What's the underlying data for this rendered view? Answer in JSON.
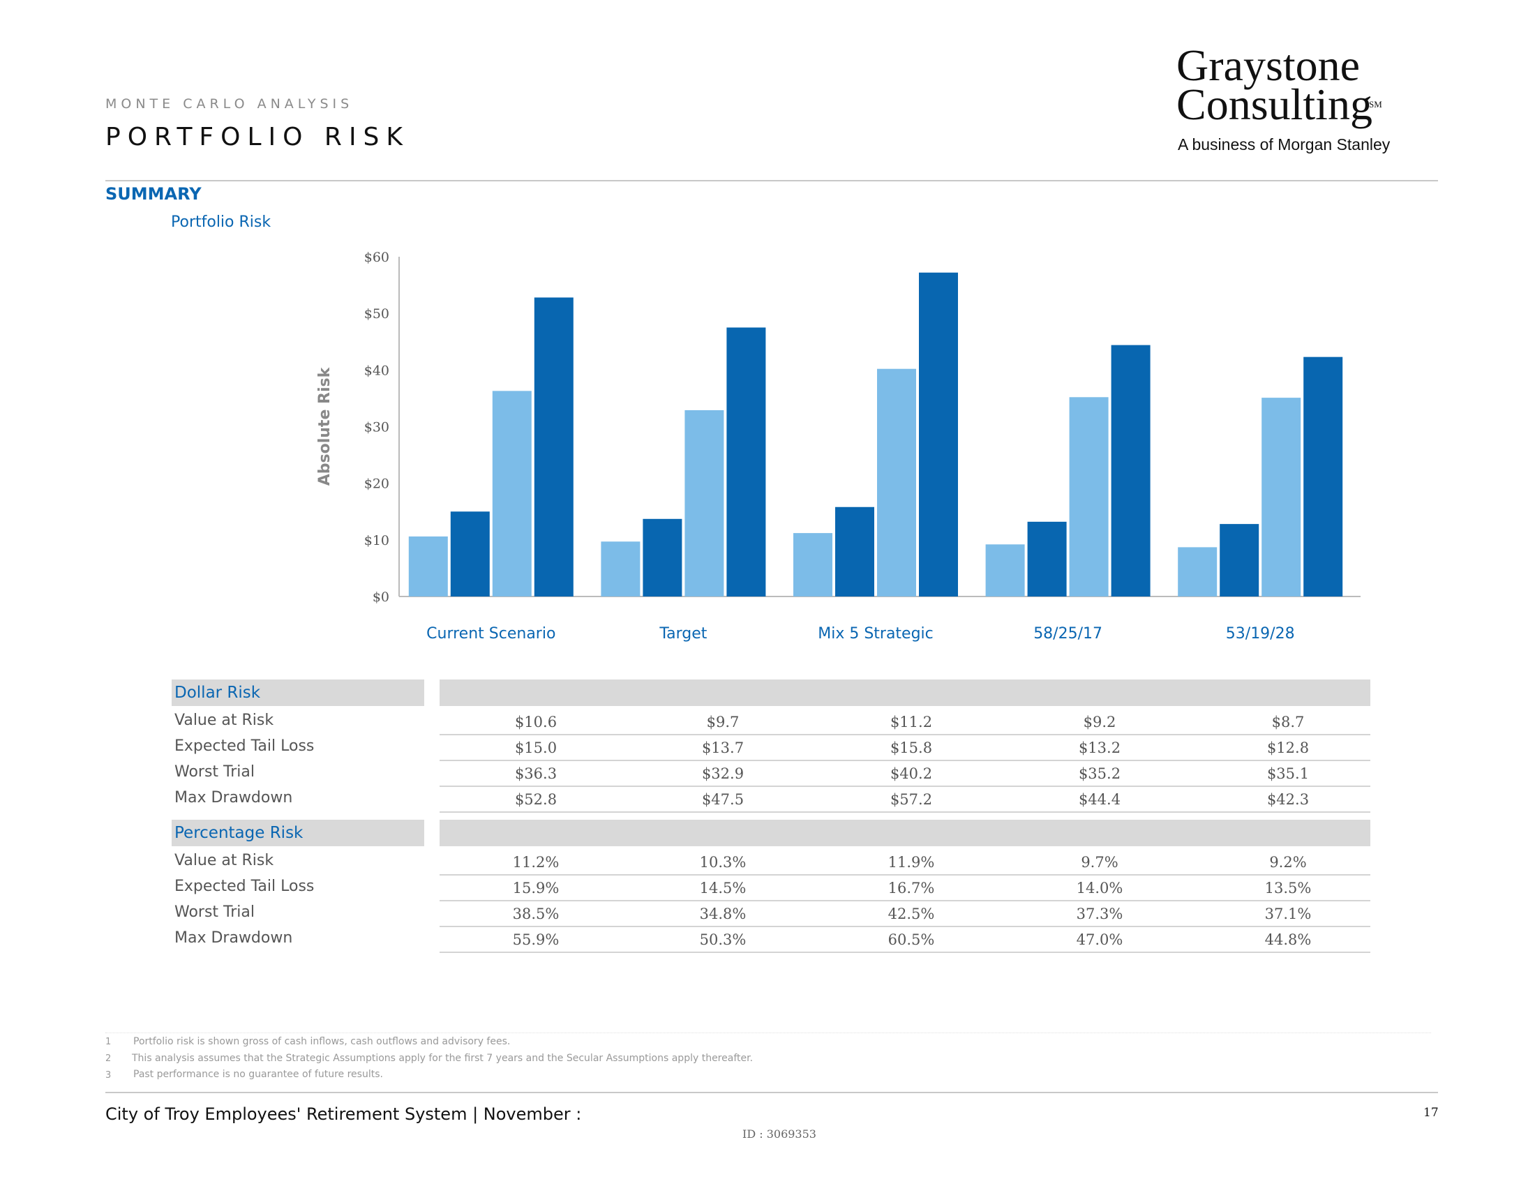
{
  "header": {
    "eyebrow": "MONTE CARLO ANALYSIS",
    "title": "PORTFOLIO RISK",
    "logo_line1": "Graystone",
    "logo_line2": "Consulting",
    "logo_mark": "SM",
    "logo_tagline": "A business of Morgan Stanley"
  },
  "section": {
    "summary": "SUMMARY",
    "subheading": "Portfolio Risk"
  },
  "chart_data": {
    "type": "bar",
    "ylabel": "Absolute Risk",
    "ylim": [
      0,
      60
    ],
    "yticks": [
      "$0",
      "$10",
      "$20",
      "$30",
      "$40",
      "$50",
      "$60"
    ],
    "ytick_values": [
      0,
      10,
      20,
      30,
      40,
      50,
      60
    ],
    "categories": [
      "Current Scenario",
      "Target",
      "Mix 5 Strategic",
      "58/25/17",
      "53/19/28"
    ],
    "series": [
      {
        "values": [
          10.6,
          9.7,
          11.2,
          9.2,
          8.7
        ],
        "color": "#7cbce8"
      },
      {
        "values": [
          15.0,
          13.7,
          15.8,
          13.2,
          12.8
        ],
        "color": "#0866b0"
      },
      {
        "values": [
          36.3,
          32.9,
          40.2,
          35.2,
          35.1
        ],
        "color": "#7cbce8"
      },
      {
        "values": [
          52.8,
          47.5,
          57.2,
          44.4,
          42.3
        ],
        "color": "#0866b0"
      }
    ],
    "grid": false,
    "legend": "none"
  },
  "table": {
    "dollar": {
      "heading": "Dollar Risk",
      "rows": [
        {
          "label": "Value at Risk",
          "values": [
            "$10.6",
            "$9.7",
            "$11.2",
            "$9.2",
            "$8.7"
          ]
        },
        {
          "label": "Expected Tail Loss",
          "values": [
            "$15.0",
            "$13.7",
            "$15.8",
            "$13.2",
            "$12.8"
          ]
        },
        {
          "label": "Worst Trial",
          "values": [
            "$36.3",
            "$32.9",
            "$40.2",
            "$35.2",
            "$35.1"
          ]
        },
        {
          "label": "Max Drawdown",
          "values": [
            "$52.8",
            "$47.5",
            "$57.2",
            "$44.4",
            "$42.3"
          ]
        }
      ]
    },
    "percentage": {
      "heading": "Percentage Risk",
      "rows": [
        {
          "label": "Value at Risk",
          "values": [
            "11.2%",
            "10.3%",
            "11.9%",
            "9.7%",
            "9.2%"
          ]
        },
        {
          "label": "Expected Tail Loss",
          "values": [
            "15.9%",
            "14.5%",
            "16.7%",
            "14.0%",
            "13.5%"
          ]
        },
        {
          "label": "Worst Trial",
          "values": [
            "38.5%",
            "34.8%",
            "42.5%",
            "37.3%",
            "37.1%"
          ]
        },
        {
          "label": "Max Drawdown",
          "values": [
            "55.9%",
            "50.3%",
            "60.5%",
            "47.0%",
            "44.8%"
          ]
        }
      ]
    }
  },
  "footnotes": [
    {
      "num": "1",
      "text": "Portfolio risk is shown gross of cash inflows, cash outflows and advisory fees."
    },
    {
      "num": "2",
      "text": "This analysis assumes that the Strategic Assumptions apply for the first 7 years and the Secular Assumptions apply thereafter."
    },
    {
      "num": "3",
      "text": "Past performance is no guarantee of future results."
    }
  ],
  "footer": {
    "client": "City of Troy Employees' Retirement System | November :",
    "page": "17",
    "doc_id": "ID : 3069353"
  }
}
